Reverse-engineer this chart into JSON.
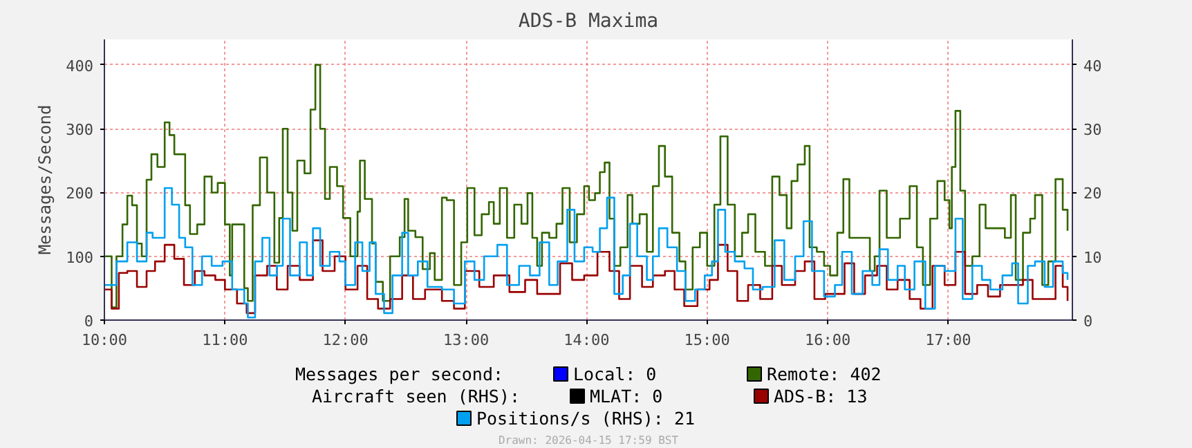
{
  "chart_data": {
    "type": "step",
    "title": "ADS-B Maxima",
    "ylabel": "Messages/Second",
    "xlim": [
      10,
      18.03
    ],
    "xticks": [
      {
        "value": 10,
        "label": "10:00"
      },
      {
        "value": 11,
        "label": "11:00"
      },
      {
        "value": 12,
        "label": "12:00"
      },
      {
        "value": 13,
        "label": "13:00"
      },
      {
        "value": 14,
        "label": "14:00"
      },
      {
        "value": 15,
        "label": "15:00"
      },
      {
        "value": 16,
        "label": "16:00"
      },
      {
        "value": 17,
        "label": "17:00"
      }
    ],
    "ylim": [
      0,
      440
    ],
    "yticks": [
      0,
      100,
      200,
      300,
      400
    ],
    "y2lim": [
      0,
      44
    ],
    "y2ticks": [
      0,
      10,
      20,
      30,
      40
    ],
    "grid": true,
    "legend": "bottom",
    "line_style": "solid",
    "annotations": [
      "Messages per second:",
      "Aircraft seen (RHS):",
      "Drawn: 2026-04-15 17:59 BST"
    ],
    "series": [
      {
        "name": "Local: 0",
        "color": "#0000ff"
      },
      {
        "name": "Remote: 402",
        "color": "#336600",
        "x": [
          10.0,
          10.06,
          10.1,
          10.15,
          10.19,
          10.23,
          10.27,
          10.31,
          10.35,
          10.39,
          10.44,
          10.5,
          10.54,
          10.58,
          10.64,
          10.67,
          10.71,
          10.77,
          10.83,
          10.89,
          10.94,
          11.0,
          11.04,
          11.06,
          11.1,
          11.16,
          11.19,
          11.23,
          11.29,
          11.35,
          11.41,
          11.45,
          11.48,
          11.52,
          11.56,
          11.6,
          11.66,
          11.71,
          11.75,
          11.79,
          11.83,
          11.87,
          11.93,
          11.98,
          12.04,
          12.1,
          12.12,
          12.16,
          12.22,
          12.25,
          12.31,
          12.37,
          12.45,
          12.49,
          12.52,
          12.58,
          12.64,
          12.7,
          12.74,
          12.8,
          12.84,
          12.9,
          12.96,
          13.01,
          13.07,
          13.13,
          13.19,
          13.23,
          13.28,
          13.34,
          13.4,
          13.46,
          13.51,
          13.55,
          13.59,
          13.63,
          13.69,
          13.75,
          13.8,
          13.86,
          13.92,
          13.98,
          14.02,
          14.07,
          14.11,
          14.15,
          14.19,
          14.23,
          14.28,
          14.34,
          14.38,
          14.44,
          14.5,
          14.55,
          14.6,
          14.65,
          14.71,
          14.77,
          14.82,
          14.88,
          14.94,
          15.0,
          15.06,
          15.11,
          15.17,
          15.23,
          15.29,
          15.34,
          15.4,
          15.48,
          15.54,
          15.6,
          15.66,
          15.7,
          15.75,
          15.81,
          15.85,
          15.91,
          15.97,
          16.02,
          16.08,
          16.13,
          16.18,
          16.23,
          16.29,
          16.35,
          16.39,
          16.43,
          16.49,
          16.54,
          16.6,
          16.68,
          16.74,
          16.79,
          16.85,
          16.91,
          16.97,
          17.01,
          17.03,
          17.06,
          17.1,
          17.14,
          17.2,
          17.26,
          17.31,
          17.39,
          17.47,
          17.52,
          17.56,
          17.62,
          17.68,
          17.72,
          17.78,
          17.83,
          17.89,
          17.95,
          17.99
        ],
        "values": [
          100,
          20,
          100,
          150,
          195,
          180,
          120,
          100,
          220,
          260,
          240,
          310,
          290,
          260,
          260,
          180,
          135,
          150,
          225,
          200,
          215,
          150,
          70,
          150,
          150,
          50,
          30,
          180,
          255,
          200,
          90,
          160,
          300,
          200,
          140,
          250,
          230,
          330,
          400,
          300,
          190,
          240,
          210,
          160,
          100,
          170,
          250,
          190,
          120,
          60,
          30,
          100,
          130,
          190,
          140,
          130,
          80,
          105,
          63,
          192,
          188,
          55,
          122,
          207,
          133,
          166,
          185,
          151,
          207,
          129,
          181,
          151,
          199,
          129,
          85,
          137,
          129,
          151,
          207,
          122,
          166,
          210,
          188,
          199,
          232,
          247,
          159,
          85,
          114,
          196,
          151,
          166,
          107,
          210,
          273,
          225,
          137,
          92,
          48,
          114,
          137,
          85,
          181,
          288,
          181,
          100,
          137,
          166,
          107,
          85,
          225,
          196,
          144,
          218,
          244,
          273,
          114,
          107,
          85,
          70,
          137,
          221,
          129,
          129,
          129,
          77,
          100,
          203,
          129,
          129,
          159,
          210,
          114,
          55,
          159,
          218,
          188,
          144,
          240,
          328,
          203,
          85,
          100,
          181,
          144,
          144,
          129,
          196,
          63,
          137,
          159,
          196,
          55,
          92,
          221,
          173,
          140
        ]
      },
      {
        "name": "MLAT: 0",
        "color": "#000000"
      },
      {
        "name": "ADS-B: 13",
        "color": "#990000",
        "axis": "y2",
        "x": [
          10.0,
          10.06,
          10.12,
          10.19,
          10.27,
          10.35,
          10.42,
          10.5,
          10.58,
          10.66,
          10.75,
          10.83,
          10.92,
          11.0,
          11.1,
          11.18,
          11.25,
          11.35,
          11.43,
          11.52,
          11.62,
          11.73,
          11.81,
          11.91,
          12.0,
          12.1,
          12.18,
          12.27,
          12.37,
          12.47,
          12.56,
          12.66,
          12.8,
          12.9,
          12.99,
          13.11,
          13.23,
          13.36,
          13.49,
          13.59,
          13.69,
          13.78,
          13.88,
          13.98,
          14.09,
          14.19,
          14.27,
          14.36,
          14.46,
          14.55,
          14.65,
          14.73,
          14.81,
          14.92,
          15.02,
          15.09,
          15.17,
          15.25,
          15.34,
          15.44,
          15.54,
          15.62,
          15.73,
          15.81,
          15.89,
          15.98,
          16.08,
          16.14,
          16.22,
          16.31,
          16.41,
          16.49,
          16.58,
          16.68,
          16.77,
          16.87,
          16.97,
          17.06,
          17.14,
          17.24,
          17.33,
          17.43,
          17.53,
          17.62,
          17.7,
          17.8,
          17.89,
          17.95,
          17.99
        ],
        "values": [
          4.8,
          1.8,
          7.4,
          7.7,
          5.2,
          7.7,
          9.2,
          11.8,
          9.6,
          5.5,
          7.7,
          7.0,
          6.3,
          4.8,
          2.6,
          1.1,
          7.0,
          8.5,
          4.8,
          8.5,
          6.3,
          12.5,
          7.7,
          10.0,
          4.8,
          8.5,
          3.3,
          1.8,
          3.3,
          7.0,
          3.3,
          4.8,
          3.0,
          1.8,
          7.7,
          5.2,
          7.0,
          4.4,
          6.3,
          4.1,
          4.1,
          8.9,
          6.3,
          7.0,
          10.7,
          7.7,
          3.3,
          8.5,
          5.2,
          7.0,
          7.7,
          4.8,
          2.2,
          4.8,
          6.3,
          11.8,
          7.7,
          3.0,
          5.5,
          3.3,
          8.5,
          5.5,
          7.7,
          9.2,
          3.3,
          4.1,
          4.1,
          8.9,
          4.1,
          7.0,
          8.5,
          4.8,
          6.3,
          3.3,
          1.8,
          8.5,
          5.5,
          10.7,
          4.1,
          5.5,
          3.7,
          5.5,
          5.5,
          6.3,
          3.3,
          3.3,
          8.5,
          5.2,
          3.0
        ]
      },
      {
        "name": "Positions/s (RHS): 21",
        "color": "#00a0f0",
        "axis": "y2",
        "x": [
          10.0,
          10.1,
          10.19,
          10.27,
          10.35,
          10.4,
          10.5,
          10.56,
          10.62,
          10.67,
          10.73,
          10.81,
          10.89,
          10.98,
          11.06,
          11.16,
          11.19,
          11.25,
          11.31,
          11.37,
          11.43,
          11.48,
          11.54,
          11.62,
          11.68,
          11.73,
          11.79,
          11.87,
          11.95,
          12.0,
          12.08,
          12.14,
          12.2,
          12.25,
          12.32,
          12.39,
          12.47,
          12.52,
          12.6,
          12.68,
          12.8,
          12.9,
          12.99,
          13.07,
          13.15,
          13.26,
          13.34,
          13.44,
          13.53,
          13.61,
          13.69,
          13.76,
          13.84,
          13.9,
          13.98,
          14.05,
          14.11,
          14.17,
          14.23,
          14.3,
          14.36,
          14.42,
          14.5,
          14.55,
          14.6,
          14.67,
          14.75,
          14.82,
          14.9,
          14.98,
          15.04,
          15.09,
          15.15,
          15.23,
          15.31,
          15.38,
          15.46,
          15.56,
          15.64,
          15.73,
          15.8,
          15.87,
          15.97,
          16.06,
          16.12,
          16.2,
          16.29,
          16.37,
          16.43,
          16.5,
          16.58,
          16.64,
          16.72,
          16.81,
          16.89,
          16.97,
          17.06,
          17.12,
          17.2,
          17.28,
          17.35,
          17.45,
          17.53,
          17.58,
          17.66,
          17.72,
          17.8,
          17.87,
          17.95,
          17.99
        ],
        "values": [
          5.5,
          9.2,
          12.2,
          9.2,
          13.7,
          12.9,
          20.7,
          18.1,
          12.9,
          11.4,
          5.5,
          10.0,
          8.5,
          9.2,
          4.8,
          2.6,
          0.4,
          9.2,
          12.9,
          7.0,
          8.5,
          15.9,
          7.0,
          12.2,
          7.0,
          14.4,
          8.5,
          10.7,
          9.2,
          5.5,
          12.2,
          7.7,
          12.2,
          4.1,
          1.1,
          7.0,
          13.7,
          7.0,
          9.2,
          5.2,
          4.8,
          2.6,
          9.2,
          6.3,
          10.0,
          11.8,
          5.5,
          8.5,
          7.0,
          12.2,
          5.5,
          9.2,
          17.3,
          9.2,
          11.4,
          10.7,
          14.4,
          19.2,
          4.1,
          7.0,
          15.1,
          10.0,
          6.3,
          10.0,
          14.4,
          11.4,
          7.7,
          3.0,
          4.8,
          7.0,
          9.2,
          17.3,
          10.7,
          9.2,
          8.1,
          4.8,
          5.2,
          12.5,
          6.3,
          10.0,
          15.5,
          7.7,
          3.7,
          5.5,
          10.7,
          4.1,
          7.7,
          5.5,
          11.1,
          6.3,
          8.5,
          4.8,
          9.2,
          1.8,
          8.5,
          7.7,
          15.9,
          3.3,
          8.5,
          6.3,
          4.8,
          7.0,
          8.9,
          2.6,
          8.5,
          9.2,
          5.2,
          9.2,
          7.4,
          6.3
        ]
      }
    ]
  }
}
